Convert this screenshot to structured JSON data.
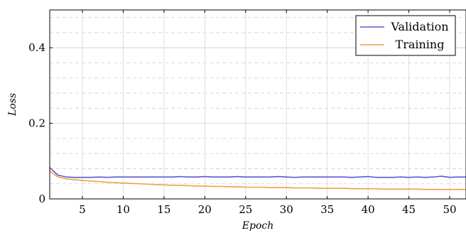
{
  "chart_data": {
    "type": "line",
    "title": "",
    "xlabel": "Epoch",
    "ylabel": "Loss",
    "xlim": [
      1,
      52
    ],
    "ylim": [
      0,
      0.5
    ],
    "x_ticks": [
      5,
      10,
      15,
      20,
      25,
      30,
      35,
      40,
      45,
      50
    ],
    "y_ticks": [
      0,
      0.2,
      0.4
    ],
    "y_tick_labels": [
      "0",
      "0.2",
      "0.4"
    ],
    "grid": true,
    "minor_grid_dashed": true,
    "legend_position": "top-right",
    "x": [
      1,
      2,
      3,
      4,
      5,
      6,
      7,
      8,
      9,
      10,
      11,
      12,
      13,
      14,
      15,
      16,
      17,
      18,
      19,
      20,
      21,
      22,
      23,
      24,
      25,
      26,
      27,
      28,
      29,
      30,
      31,
      32,
      33,
      34,
      35,
      36,
      37,
      38,
      39,
      40,
      41,
      42,
      43,
      44,
      45,
      46,
      47,
      48,
      49,
      50,
      51,
      52
    ],
    "series": [
      {
        "name": "Validation",
        "color": "#5a5ad0",
        "values": [
          0.083,
          0.063,
          0.058,
          0.057,
          0.057,
          0.057,
          0.058,
          0.057,
          0.058,
          0.058,
          0.058,
          0.058,
          0.058,
          0.058,
          0.058,
          0.058,
          0.059,
          0.058,
          0.058,
          0.059,
          0.058,
          0.058,
          0.058,
          0.059,
          0.058,
          0.058,
          0.058,
          0.058,
          0.059,
          0.058,
          0.057,
          0.058,
          0.058,
          0.058,
          0.058,
          0.058,
          0.058,
          0.057,
          0.058,
          0.059,
          0.057,
          0.057,
          0.057,
          0.058,
          0.057,
          0.058,
          0.057,
          0.058,
          0.06,
          0.057,
          0.058,
          0.058
        ]
      },
      {
        "name": "Training",
        "color": "#f0a040",
        "values": [
          0.074,
          0.058,
          0.053,
          0.051,
          0.049,
          0.047,
          0.046,
          0.044,
          0.043,
          0.042,
          0.041,
          0.04,
          0.039,
          0.038,
          0.037,
          0.036,
          0.036,
          0.035,
          0.034,
          0.034,
          0.033,
          0.033,
          0.032,
          0.032,
          0.031,
          0.031,
          0.031,
          0.03,
          0.03,
          0.03,
          0.029,
          0.029,
          0.029,
          0.028,
          0.028,
          0.028,
          0.028,
          0.027,
          0.027,
          0.027,
          0.027,
          0.026,
          0.026,
          0.026,
          0.026,
          0.026,
          0.025,
          0.025,
          0.025,
          0.025,
          0.025,
          0.025
        ]
      }
    ]
  }
}
